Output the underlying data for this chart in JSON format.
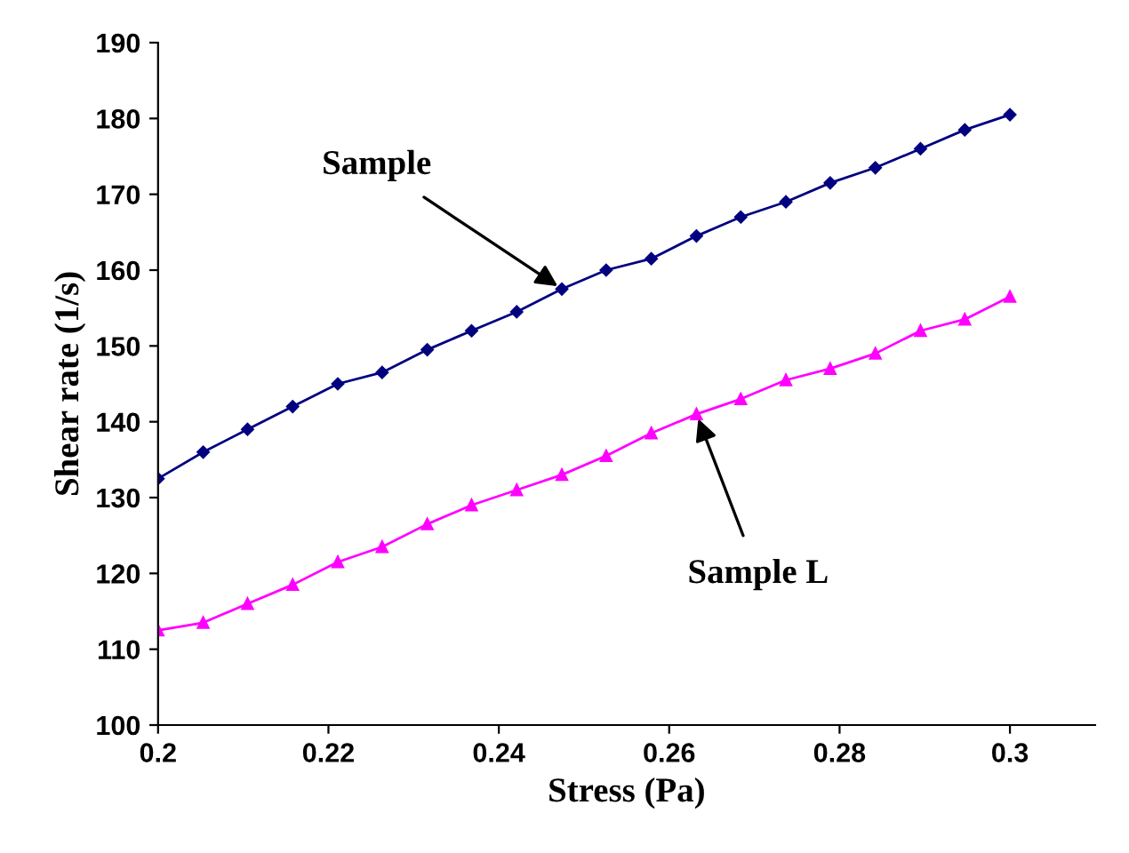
{
  "chart_data": {
    "type": "line",
    "xlabel": "Stress (Pa)",
    "ylabel": "Shear rate (1/s)",
    "x": [
      0.2,
      0.2053,
      0.2105,
      0.2158,
      0.2211,
      0.2263,
      0.2316,
      0.2368,
      0.2421,
      0.2474,
      0.2526,
      0.2579,
      0.2632,
      0.2684,
      0.2737,
      0.2789,
      0.2842,
      0.2895,
      0.2947,
      0.3
    ],
    "series": [
      {
        "color": "#000080",
        "marker": "diamond",
        "values": [
          132.5,
          136,
          139,
          142,
          145,
          146.5,
          149.5,
          152,
          154.5,
          157.5,
          160,
          161.5,
          164.5,
          167,
          169,
          171.5,
          173.5,
          176,
          178.5,
          180.5
        ]
      },
      {
        "color": "#ff00ff",
        "marker": "triangle",
        "values": [
          112.5,
          113.5,
          116,
          118.5,
          121.5,
          123.5,
          126.5,
          129,
          131,
          133,
          135.5,
          138.5,
          141,
          143,
          145.5,
          147,
          149,
          152,
          153.5,
          156.5
        ]
      }
    ],
    "annotations": [
      {
        "text": "Sample",
        "x": 0.2474,
        "y": 157.5
      },
      {
        "text": "Sample L",
        "x": 0.2632,
        "y": 141
      }
    ],
    "xlim": [
      0.2,
      0.31
    ],
    "xticks": [
      {
        "value": 0.2,
        "label": "0.2"
      },
      0.22,
      0.24,
      0.26,
      0.28,
      {
        "value": 0.3,
        "label": "0.3"
      }
    ],
    "ylim": [
      100,
      190
    ],
    "yticks": [
      100,
      110,
      120,
      130,
      140,
      150,
      160,
      170,
      180,
      190
    ],
    "grid": false,
    "legend": false,
    "line_style": "solid"
  }
}
